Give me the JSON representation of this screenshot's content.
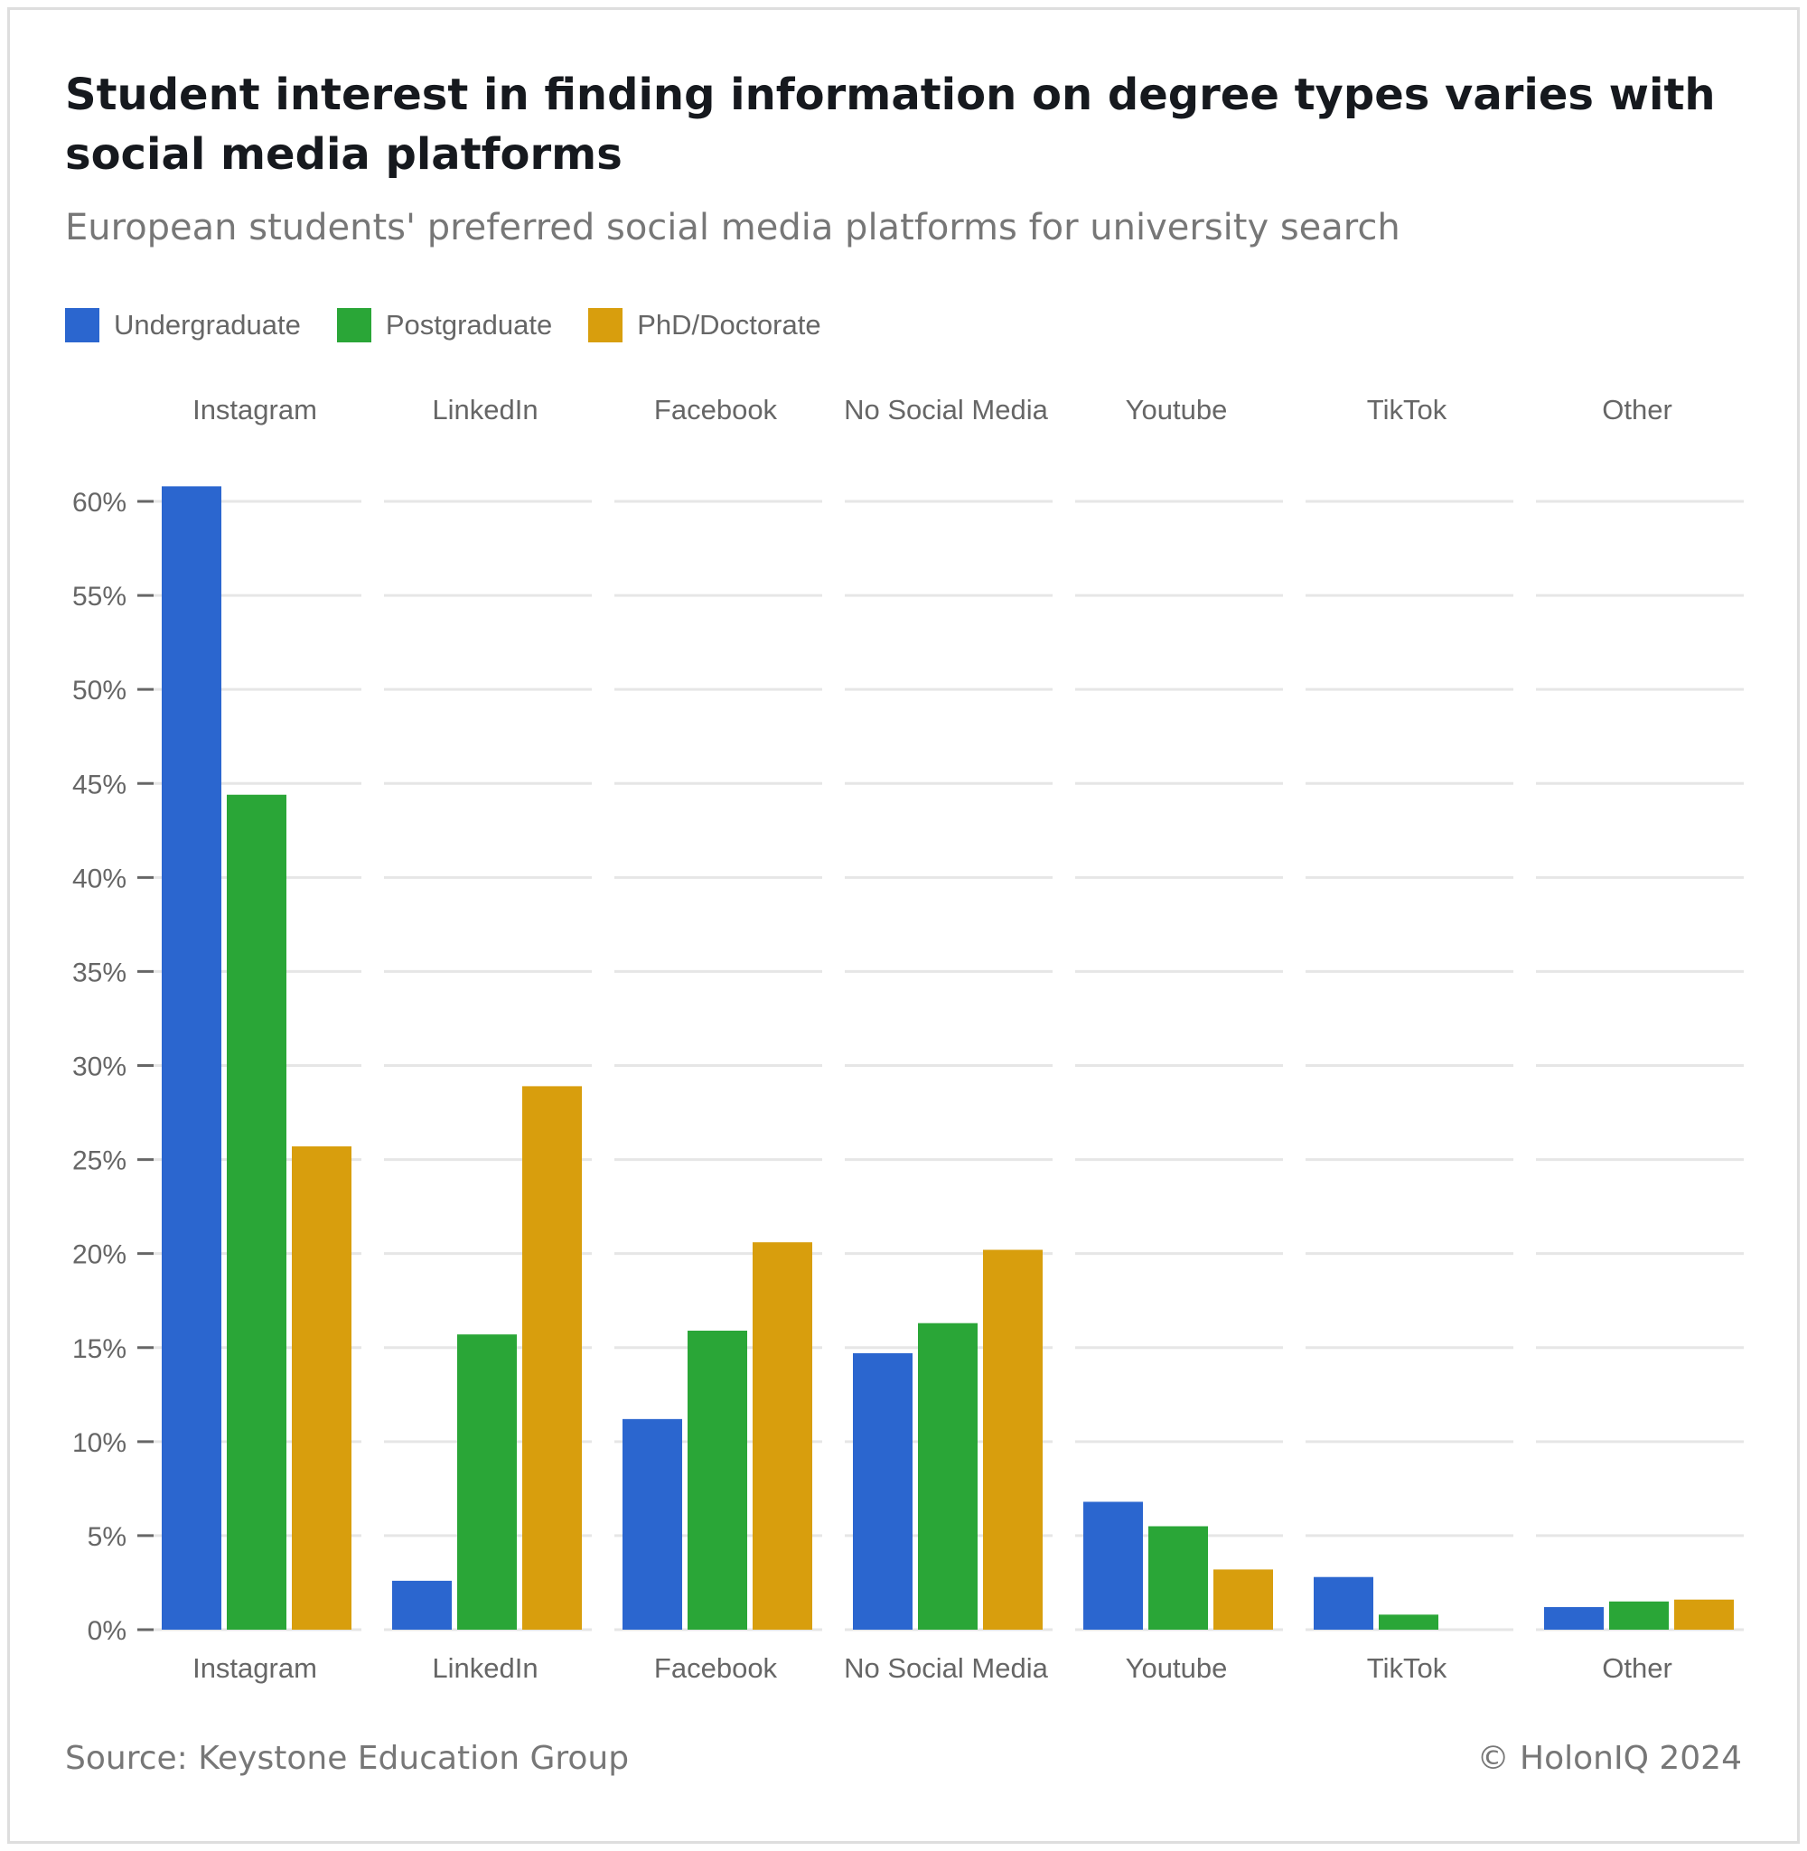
{
  "colors": {
    "undergraduate": "#2b66cf",
    "postgraduate": "#2aa637",
    "phd": "#d89e0d",
    "gridline": "#e6e6e6",
    "axis_text": "#666666"
  },
  "chart_data": {
    "type": "bar",
    "title": "Student interest in finding information on degree types varies with social media platforms",
    "subtitle": "European students' preferred social media platforms for university search",
    "categories": [
      "Instagram",
      "LinkedIn",
      "Facebook",
      "No Social Media",
      "Youtube",
      "TikTok",
      "Other"
    ],
    "series": [
      {
        "name": "Undergraduate",
        "values": [
          60.8,
          2.6,
          11.2,
          14.7,
          6.8,
          2.8,
          1.2
        ]
      },
      {
        "name": "Postgraduate",
        "values": [
          44.4,
          15.7,
          15.9,
          16.3,
          5.5,
          0.8,
          1.5
        ]
      },
      {
        "name": "PhD/Doctorate",
        "values": [
          25.7,
          28.9,
          20.6,
          20.2,
          3.2,
          0.0,
          1.6
        ]
      }
    ],
    "y_ticks": [
      "0%",
      "5%",
      "10%",
      "15%",
      "20%",
      "25%",
      "30%",
      "35%",
      "40%",
      "45%",
      "50%",
      "55%",
      "60%"
    ],
    "ylim": [
      0,
      60
    ],
    "xlabel": "",
    "ylabel": "",
    "grid": true,
    "legend": "top-left",
    "category_labels_position": "top and bottom"
  },
  "footer": {
    "source": "Source: Keystone Education Group",
    "copyright": "© HolonIQ 2024"
  }
}
